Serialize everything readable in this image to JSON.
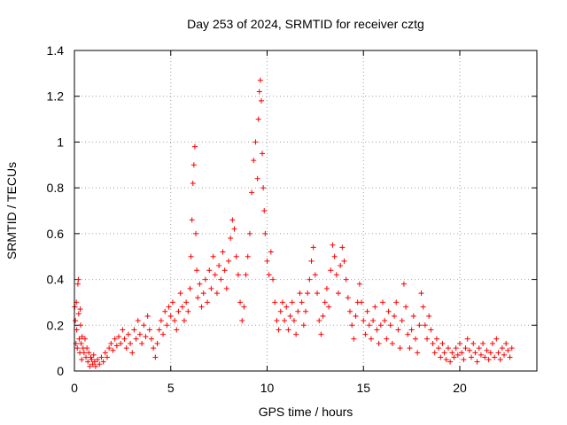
{
  "chart_data": {
    "type": "scatter",
    "title": "Day 253 of 2024, SRMTID for receiver cztg",
    "xlabel": "GPS time / hours",
    "ylabel": "SRMTID / TECUs",
    "xlim": [
      0,
      24
    ],
    "ylim": [
      0,
      1.4
    ],
    "xticks": [
      0,
      5,
      10,
      15,
      20
    ],
    "xtick_labels": [
      "0",
      "5",
      "10",
      "15",
      "20"
    ],
    "yticks": [
      0,
      0.2,
      0.4,
      0.6,
      0.8,
      1.0,
      1.2,
      1.4
    ],
    "ytick_labels": [
      "0",
      "0.2",
      "0.4",
      "0.6",
      "0.8",
      "1",
      "1.2",
      "1.4"
    ],
    "grid": true,
    "marker": "+",
    "series": [
      {
        "name": "SRMTID",
        "color": "#ff0000",
        "points": [
          [
            0.02,
            0.28
          ],
          [
            0.05,
            0.22
          ],
          [
            0.08,
            0.12
          ],
          [
            0.1,
            0.3
          ],
          [
            0.12,
            0.18
          ],
          [
            0.15,
            0.1
          ],
          [
            0.18,
            0.38
          ],
          [
            0.2,
            0.4
          ],
          [
            0.22,
            0.25
          ],
          [
            0.25,
            0.14
          ],
          [
            0.28,
            0.08
          ],
          [
            0.3,
            0.27
          ],
          [
            0.32,
            0.2
          ],
          [
            0.35,
            0.12
          ],
          [
            0.38,
            0.05
          ],
          [
            0.4,
            0.15
          ],
          [
            0.45,
            0.1
          ],
          [
            0.5,
            0.08
          ],
          [
            0.55,
            0.14
          ],
          [
            0.6,
            0.06
          ],
          [
            0.65,
            0.1
          ],
          [
            0.7,
            0.04
          ],
          [
            0.75,
            0.08
          ],
          [
            0.8,
            0.02
          ],
          [
            0.85,
            0.06
          ],
          [
            0.9,
            0.05
          ],
          [
            0.95,
            0.03
          ],
          [
            1.0,
            0.07
          ],
          [
            1.05,
            0.04
          ],
          [
            1.1,
            0.02
          ],
          [
            1.2,
            0.05
          ],
          [
            1.3,
            0.03
          ],
          [
            1.4,
            0.06
          ],
          [
            1.5,
            0.04
          ],
          [
            1.6,
            0.08
          ],
          [
            1.7,
            0.06
          ],
          [
            1.8,
            0.1
          ],
          [
            1.9,
            0.12
          ],
          [
            2.0,
            0.09
          ],
          [
            2.1,
            0.14
          ],
          [
            2.2,
            0.11
          ],
          [
            2.3,
            0.15
          ],
          [
            2.4,
            0.12
          ],
          [
            2.5,
            0.18
          ],
          [
            2.6,
            0.14
          ],
          [
            2.7,
            0.1
          ],
          [
            2.8,
            0.16
          ],
          [
            2.9,
            0.12
          ],
          [
            3.0,
            0.08
          ],
          [
            3.1,
            0.18
          ],
          [
            3.2,
            0.14
          ],
          [
            3.3,
            0.22
          ],
          [
            3.4,
            0.16
          ],
          [
            3.5,
            0.12
          ],
          [
            3.6,
            0.2
          ],
          [
            3.7,
            0.15
          ],
          [
            3.8,
            0.24
          ],
          [
            3.9,
            0.18
          ],
          [
            4.0,
            0.14
          ],
          [
            4.1,
            0.1
          ],
          [
            4.2,
            0.06
          ],
          [
            4.3,
            0.12
          ],
          [
            4.4,
            0.18
          ],
          [
            4.5,
            0.22
          ],
          [
            4.6,
            0.16
          ],
          [
            4.7,
            0.26
          ],
          [
            4.8,
            0.2
          ],
          [
            4.9,
            0.28
          ],
          [
            5.0,
            0.24
          ],
          [
            5.1,
            0.3
          ],
          [
            5.2,
            0.22
          ],
          [
            5.3,
            0.18
          ],
          [
            5.4,
            0.26
          ],
          [
            5.5,
            0.34
          ],
          [
            5.6,
            0.28
          ],
          [
            5.7,
            0.22
          ],
          [
            5.8,
            0.3
          ],
          [
            5.9,
            0.26
          ],
          [
            6.0,
            0.36
          ],
          [
            6.05,
            0.5
          ],
          [
            6.1,
            0.66
          ],
          [
            6.15,
            0.82
          ],
          [
            6.2,
            0.9
          ],
          [
            6.25,
            0.98
          ],
          [
            6.3,
            0.6
          ],
          [
            6.35,
            0.44
          ],
          [
            6.4,
            0.32
          ],
          [
            6.5,
            0.38
          ],
          [
            6.6,
            0.28
          ],
          [
            6.7,
            0.34
          ],
          [
            6.8,
            0.4
          ],
          [
            6.9,
            0.3
          ],
          [
            7.0,
            0.44
          ],
          [
            7.1,
            0.36
          ],
          [
            7.2,
            0.5
          ],
          [
            7.3,
            0.42
          ],
          [
            7.4,
            0.34
          ],
          [
            7.5,
            0.46
          ],
          [
            7.6,
            0.4
          ],
          [
            7.7,
            0.52
          ],
          [
            7.8,
            0.44
          ],
          [
            7.9,
            0.36
          ],
          [
            8.0,
            0.48
          ],
          [
            8.1,
            0.58
          ],
          [
            8.2,
            0.66
          ],
          [
            8.3,
            0.62
          ],
          [
            8.4,
            0.5
          ],
          [
            8.5,
            0.42
          ],
          [
            8.6,
            0.3
          ],
          [
            8.7,
            0.22
          ],
          [
            8.8,
            0.28
          ],
          [
            8.9,
            0.42
          ],
          [
            9.0,
            0.5
          ],
          [
            9.1,
            0.6
          ],
          [
            9.2,
            0.78
          ],
          [
            9.3,
            0.92
          ],
          [
            9.4,
            1.0
          ],
          [
            9.5,
            0.84
          ],
          [
            9.55,
            1.1
          ],
          [
            9.6,
            1.22
          ],
          [
            9.65,
            1.27
          ],
          [
            9.7,
            1.18
          ],
          [
            9.75,
            0.95
          ],
          [
            9.8,
            0.8
          ],
          [
            9.85,
            0.7
          ],
          [
            9.9,
            0.6
          ],
          [
            10.0,
            0.48
          ],
          [
            10.1,
            0.42
          ],
          [
            10.2,
            0.52
          ],
          [
            10.3,
            0.4
          ],
          [
            10.4,
            0.3
          ],
          [
            10.5,
            0.22
          ],
          [
            10.6,
            0.18
          ],
          [
            10.7,
            0.26
          ],
          [
            10.8,
            0.3
          ],
          [
            10.9,
            0.22
          ],
          [
            11.0,
            0.28
          ],
          [
            11.1,
            0.18
          ],
          [
            11.2,
            0.24
          ],
          [
            11.3,
            0.3
          ],
          [
            11.4,
            0.22
          ],
          [
            11.5,
            0.16
          ],
          [
            11.6,
            0.26
          ],
          [
            11.7,
            0.34
          ],
          [
            11.8,
            0.3
          ],
          [
            11.9,
            0.2
          ],
          [
            12.0,
            0.26
          ],
          [
            12.1,
            0.34
          ],
          [
            12.2,
            0.4
          ],
          [
            12.3,
            0.48
          ],
          [
            12.4,
            0.54
          ],
          [
            12.5,
            0.42
          ],
          [
            12.6,
            0.34
          ],
          [
            12.7,
            0.22
          ],
          [
            12.8,
            0.16
          ],
          [
            12.9,
            0.24
          ],
          [
            13.0,
            0.3
          ],
          [
            13.1,
            0.36
          ],
          [
            13.2,
            0.28
          ],
          [
            13.3,
            0.44
          ],
          [
            13.4,
            0.55
          ],
          [
            13.5,
            0.5
          ],
          [
            13.6,
            0.42
          ],
          [
            13.7,
            0.34
          ],
          [
            13.8,
            0.46
          ],
          [
            13.9,
            0.54
          ],
          [
            14.0,
            0.48
          ],
          [
            14.1,
            0.4
          ],
          [
            14.2,
            0.32
          ],
          [
            14.3,
            0.26
          ],
          [
            14.4,
            0.2
          ],
          [
            14.5,
            0.14
          ],
          [
            14.6,
            0.24
          ],
          [
            14.7,
            0.3
          ],
          [
            14.8,
            0.38
          ],
          [
            14.9,
            0.3
          ],
          [
            15.0,
            0.22
          ],
          [
            15.1,
            0.16
          ],
          [
            15.2,
            0.26
          ],
          [
            15.3,
            0.2
          ],
          [
            15.4,
            0.14
          ],
          [
            15.5,
            0.22
          ],
          [
            15.6,
            0.28
          ],
          [
            15.7,
            0.18
          ],
          [
            15.8,
            0.12
          ],
          [
            15.9,
            0.2
          ],
          [
            16.0,
            0.3
          ],
          [
            16.1,
            0.22
          ],
          [
            16.2,
            0.14
          ],
          [
            16.3,
            0.26
          ],
          [
            16.4,
            0.2
          ],
          [
            16.5,
            0.12
          ],
          [
            16.6,
            0.24
          ],
          [
            16.7,
            0.3
          ],
          [
            16.8,
            0.18
          ],
          [
            16.9,
            0.1
          ],
          [
            17.0,
            0.22
          ],
          [
            17.1,
            0.38
          ],
          [
            17.2,
            0.28
          ],
          [
            17.3,
            0.16
          ],
          [
            17.4,
            0.1
          ],
          [
            17.5,
            0.18
          ],
          [
            17.6,
            0.24
          ],
          [
            17.7,
            0.14
          ],
          [
            17.8,
            0.08
          ],
          [
            17.9,
            0.2
          ],
          [
            18.0,
            0.34
          ],
          [
            18.1,
            0.28
          ],
          [
            18.2,
            0.2
          ],
          [
            18.3,
            0.14
          ],
          [
            18.4,
            0.24
          ],
          [
            18.5,
            0.18
          ],
          [
            18.6,
            0.12
          ],
          [
            18.7,
            0.08
          ],
          [
            18.8,
            0.14
          ],
          [
            18.9,
            0.1
          ],
          [
            19.0,
            0.06
          ],
          [
            19.1,
            0.12
          ],
          [
            19.2,
            0.08
          ],
          [
            19.3,
            0.05
          ],
          [
            19.4,
            0.1
          ],
          [
            19.5,
            0.04
          ],
          [
            19.6,
            0.08
          ],
          [
            19.7,
            0.06
          ],
          [
            19.8,
            0.1
          ],
          [
            19.9,
            0.07
          ],
          [
            20.0,
            0.12
          ],
          [
            20.1,
            0.08
          ],
          [
            20.2,
            0.05
          ],
          [
            20.3,
            0.1
          ],
          [
            20.4,
            0.14
          ],
          [
            20.5,
            0.09
          ],
          [
            20.6,
            0.06
          ],
          [
            20.7,
            0.12
          ],
          [
            20.8,
            0.08
          ],
          [
            20.9,
            0.04
          ],
          [
            21.0,
            0.1
          ],
          [
            21.1,
            0.07
          ],
          [
            21.2,
            0.12
          ],
          [
            21.3,
            0.06
          ],
          [
            21.4,
            0.09
          ],
          [
            21.5,
            0.05
          ],
          [
            21.6,
            0.08
          ],
          [
            21.7,
            0.12
          ],
          [
            21.8,
            0.06
          ],
          [
            21.9,
            0.14
          ],
          [
            22.0,
            0.08
          ],
          [
            22.1,
            0.05
          ],
          [
            22.2,
            0.1
          ],
          [
            22.3,
            0.07
          ],
          [
            22.4,
            0.12
          ],
          [
            22.5,
            0.09
          ],
          [
            22.6,
            0.06
          ],
          [
            22.7,
            0.1
          ]
        ]
      }
    ]
  }
}
